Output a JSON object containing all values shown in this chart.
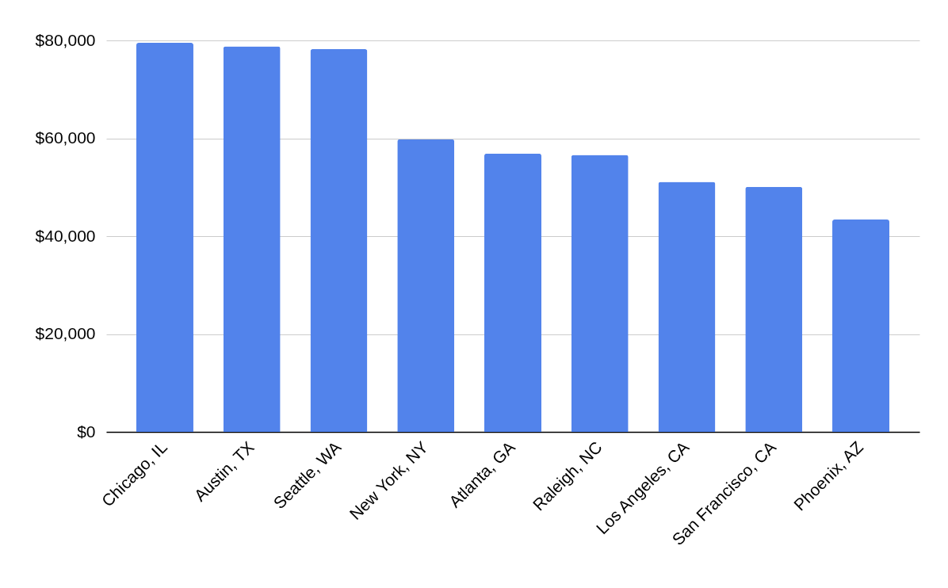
{
  "chart_data": {
    "type": "bar",
    "categories": [
      "Chicago, IL",
      "Austin, TX",
      "Seattle, WA",
      "New York, NY",
      "Atlanta, GA",
      "Raleigh, NC",
      "Los Angeles, CA",
      "San Francisco, CA",
      "Phoenix, AZ"
    ],
    "values": [
      79500,
      78800,
      78200,
      59800,
      56900,
      56600,
      51100,
      50100,
      43400
    ],
    "color": "#5283eb",
    "ylim": [
      0,
      80000
    ],
    "yticks": [
      {
        "value": 0,
        "label": "$0"
      },
      {
        "value": 20000,
        "label": "$20,000"
      },
      {
        "value": 40000,
        "label": "$40,000"
      },
      {
        "value": 60000,
        "label": "$60,000"
      },
      {
        "value": 80000,
        "label": "$80,000"
      }
    ],
    "grid": "y"
  }
}
